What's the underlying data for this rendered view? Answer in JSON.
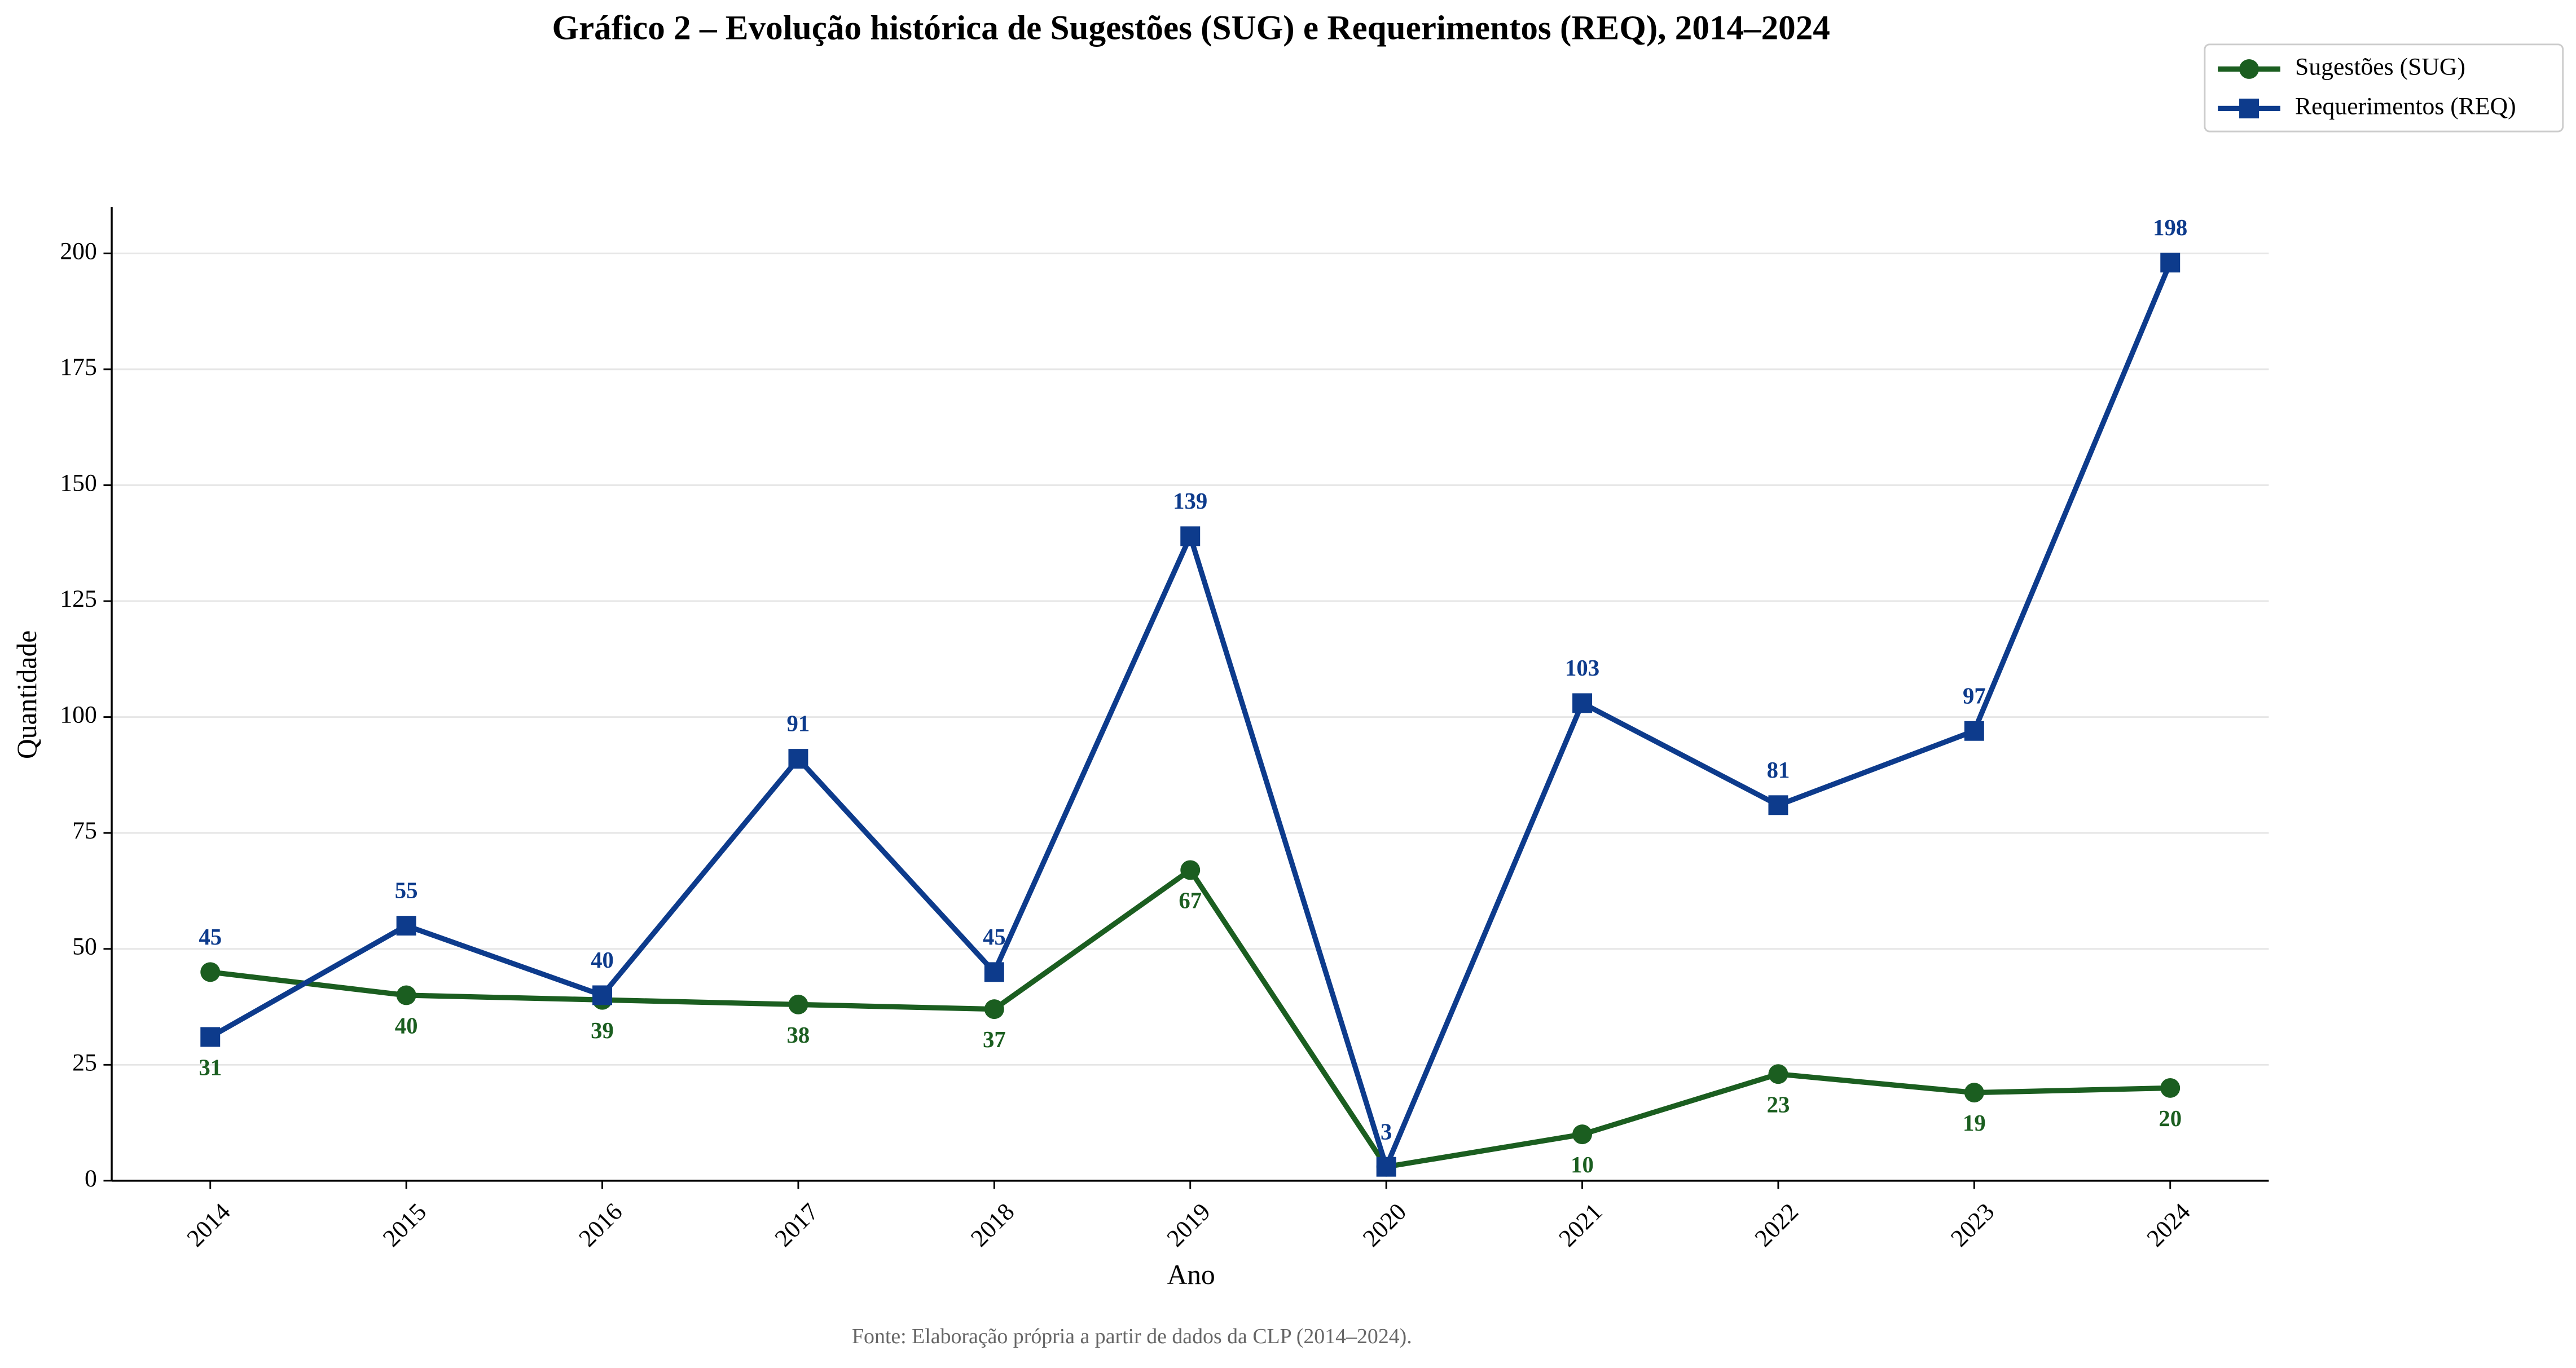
{
  "chart_data": {
    "type": "line",
    "title": "Gráfico 2 – Evolução histórica de Sugestões (SUG) e Requerimentos (REQ), 2014–2024",
    "x_label": "Ano",
    "y_label": "Quantidade",
    "source": "Fonte: Elaboração própria a partir de dados da CLP (2014–2024).",
    "categories": [
      "2014",
      "2015",
      "2016",
      "2017",
      "2018",
      "2019",
      "2020",
      "2021",
      "2022",
      "2023",
      "2024"
    ],
    "series": [
      {
        "name": "Sugestões (SUG)",
        "color": "#1b5e20",
        "marker": "circle",
        "values": [
          45,
          40,
          39,
          38,
          37,
          67,
          3,
          10,
          23,
          19,
          20
        ]
      },
      {
        "name": "Requerimentos (REQ)",
        "color": "#0d3b8c",
        "marker": "square",
        "values": [
          31,
          55,
          40,
          91,
          45,
          139,
          3,
          103,
          81,
          97,
          198
        ]
      }
    ],
    "ylim": [
      0,
      210
    ],
    "yticks": [
      0,
      25,
      50,
      75,
      100,
      125,
      150,
      175,
      200
    ],
    "grid": true,
    "legend": "upper right"
  }
}
